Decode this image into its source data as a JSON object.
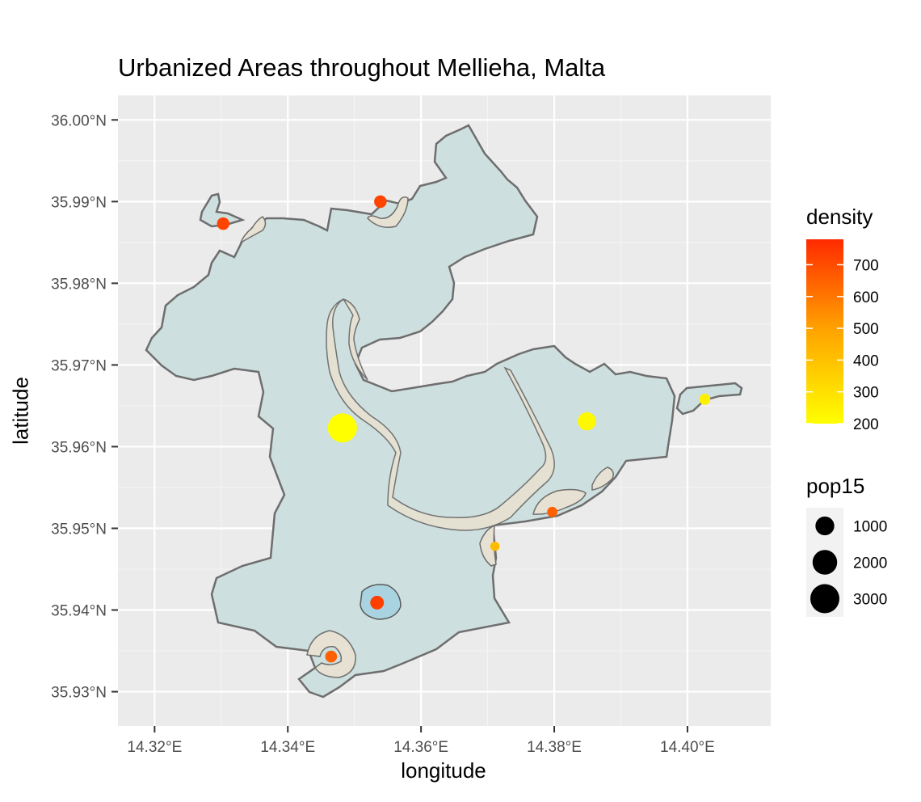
{
  "chart_data": {
    "type": "map",
    "title": "Urbanized Areas throughout Mellieha, Malta",
    "xlabel": "longitude",
    "ylabel": "latitude",
    "xlim": [
      14.3145,
      14.4125
    ],
    "ylim": [
      35.9258,
      36.003
    ],
    "x_ticks": [
      {
        "value": 14.32,
        "label": "14.32°E"
      },
      {
        "value": 14.34,
        "label": "14.34°E"
      },
      {
        "value": 14.36,
        "label": "14.36°E"
      },
      {
        "value": 14.38,
        "label": "14.38°E"
      },
      {
        "value": 14.4,
        "label": "14.40°E"
      }
    ],
    "y_ticks": [
      {
        "value": 35.93,
        "label": "35.93°N"
      },
      {
        "value": 35.94,
        "label": "35.94°N"
      },
      {
        "value": 35.95,
        "label": "35.95°N"
      },
      {
        "value": 35.96,
        "label": "35.96°N"
      },
      {
        "value": 35.97,
        "label": "35.97°N"
      },
      {
        "value": 35.98,
        "label": "35.98°N"
      },
      {
        "value": 35.99,
        "label": "35.99°N"
      },
      {
        "value": 36.0,
        "label": "36.00°N"
      }
    ],
    "grid": true,
    "colors": {
      "panel": "#ebebeb",
      "grid": "#ffffff",
      "land": "#cddfde",
      "border": "#6e6e6e",
      "urban": "#e6e1d2",
      "urban_border": "#6e6e6e",
      "water": "#a9d3e0"
    },
    "points": [
      {
        "lon": 14.3303,
        "lat": 35.9873,
        "density": 720,
        "pop15": 300
      },
      {
        "lon": 14.3539,
        "lat": 35.99,
        "density": 720,
        "pop15": 300
      },
      {
        "lon": 14.3482,
        "lat": 35.9623,
        "density": 200,
        "pop15": 3000
      },
      {
        "lon": 14.3849,
        "lat": 35.9631,
        "density": 220,
        "pop15": 900
      },
      {
        "lon": 14.4026,
        "lat": 35.9658,
        "density": 250,
        "pop15": 200
      },
      {
        "lon": 14.3797,
        "lat": 35.952,
        "density": 650,
        "pop15": 150
      },
      {
        "lon": 14.3711,
        "lat": 35.9478,
        "density": 420,
        "pop15": 100
      },
      {
        "lon": 14.3534,
        "lat": 35.9409,
        "density": 730,
        "pop15": 400
      },
      {
        "lon": 14.3465,
        "lat": 35.9343,
        "density": 650,
        "pop15": 250
      }
    ],
    "legend": {
      "position": "right",
      "density": {
        "title": "density",
        "scale": "gradient",
        "low_color": "#ffff00",
        "high_color": "#ff2a00",
        "min": 200,
        "max": 780,
        "breaks": [
          200,
          300,
          400,
          500,
          600,
          700
        ]
      },
      "pop15": {
        "title": "pop15",
        "breaks": [
          1000,
          2000,
          3000
        ]
      }
    }
  }
}
